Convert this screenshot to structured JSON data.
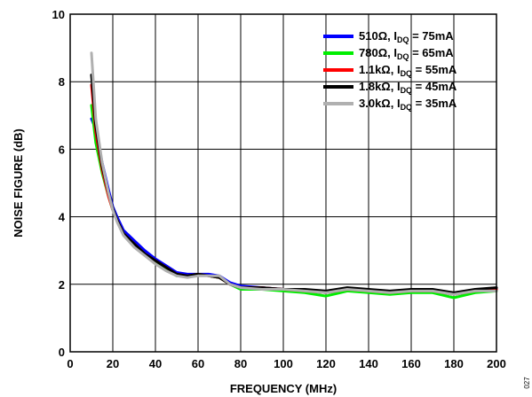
{
  "chart_data": {
    "type": "line",
    "title": "",
    "xlabel": "FREQUENCY (MHz)",
    "ylabel": "NOISE FIGURE (dB)",
    "xlim": [
      0,
      200
    ],
    "ylim": [
      0,
      10
    ],
    "xticks": [
      0,
      20,
      40,
      60,
      80,
      100,
      120,
      140,
      160,
      180,
      200
    ],
    "yticks": [
      0,
      2,
      4,
      6,
      8,
      10
    ],
    "grid": true,
    "legend_position": "top-right",
    "figure_number": "027",
    "series": [
      {
        "name": "510Ω, IDQ = 75mA",
        "legend_main": "510Ω, I",
        "legend_sub": "DQ",
        "legend_tail": " = 75mA",
        "color": "#0000ff",
        "x": [
          10,
          12,
          15,
          18,
          20,
          22,
          25,
          30,
          35,
          40,
          45,
          50,
          55,
          60,
          65,
          70,
          75,
          80,
          90,
          100,
          110,
          120,
          130,
          140,
          150,
          160,
          170,
          180,
          190,
          200
        ],
        "y": [
          6.9,
          6.6,
          5.6,
          4.8,
          4.3,
          4.0,
          3.6,
          3.3,
          3.0,
          2.75,
          2.55,
          2.35,
          2.3,
          2.3,
          2.3,
          2.25,
          2.05,
          1.95,
          1.9,
          1.85,
          1.8,
          1.75,
          1.85,
          1.8,
          1.75,
          1.8,
          1.8,
          1.7,
          1.8,
          1.85
        ]
      },
      {
        "name": "780Ω, IDQ = 65mA",
        "legend_main": "780Ω, I",
        "legend_sub": "DQ",
        "legend_tail": " = 65mA",
        "color": "#00ee00",
        "x": [
          10,
          12,
          15,
          18,
          20,
          22,
          25,
          30,
          35,
          40,
          45,
          50,
          55,
          60,
          65,
          70,
          75,
          80,
          90,
          100,
          110,
          120,
          130,
          140,
          150,
          160,
          170,
          180,
          190,
          200
        ],
        "y": [
          7.3,
          6.2,
          5.3,
          4.6,
          4.2,
          3.9,
          3.5,
          3.15,
          2.9,
          2.65,
          2.45,
          2.25,
          2.25,
          2.3,
          2.25,
          2.2,
          2.0,
          1.85,
          1.85,
          1.8,
          1.75,
          1.65,
          1.8,
          1.75,
          1.7,
          1.75,
          1.75,
          1.6,
          1.75,
          1.8
        ]
      },
      {
        "name": "1.1kΩ, IDQ = 55mA",
        "legend_main": "1.1kΩ, I",
        "legend_sub": "DQ",
        "legend_tail": " = 55mA",
        "color": "#ff0000",
        "x": [
          10,
          12,
          15,
          18,
          20,
          22,
          25,
          30,
          35,
          40,
          45,
          50,
          55,
          60,
          65,
          70,
          75,
          80,
          90,
          100,
          110,
          120,
          130,
          140,
          150,
          160,
          170,
          180,
          190,
          200
        ],
        "y": [
          7.9,
          6.5,
          5.4,
          4.6,
          4.2,
          3.9,
          3.5,
          3.2,
          2.9,
          2.7,
          2.5,
          2.3,
          2.25,
          2.3,
          2.25,
          2.2,
          2.0,
          1.9,
          1.9,
          1.85,
          1.8,
          1.75,
          1.85,
          1.8,
          1.75,
          1.8,
          1.8,
          1.7,
          1.8,
          1.85
        ]
      },
      {
        "name": "1.8kΩ, IDQ = 45mA",
        "legend_main": "1.8kΩ, I",
        "legend_sub": "DQ",
        "legend_tail": " = 45mA",
        "color": "#000000",
        "x": [
          10,
          12,
          15,
          18,
          20,
          22,
          25,
          30,
          35,
          40,
          45,
          50,
          55,
          60,
          65,
          70,
          75,
          80,
          90,
          100,
          110,
          120,
          130,
          140,
          150,
          160,
          170,
          180,
          190,
          200
        ],
        "y": [
          8.2,
          6.7,
          5.5,
          4.7,
          4.25,
          3.9,
          3.5,
          3.2,
          2.9,
          2.7,
          2.5,
          2.3,
          2.25,
          2.3,
          2.25,
          2.2,
          2.0,
          1.9,
          1.9,
          1.85,
          1.85,
          1.8,
          1.9,
          1.85,
          1.8,
          1.85,
          1.85,
          1.75,
          1.85,
          1.9
        ]
      },
      {
        "name": "3.0kΩ, IDQ = 35mA",
        "legend_main": "3.0kΩ, I",
        "legend_sub": "DQ",
        "legend_tail": " = 35mA",
        "color": "#b0b0b0",
        "x": [
          10,
          12,
          15,
          18,
          20,
          22,
          25,
          30,
          35,
          40,
          45,
          50,
          55,
          60,
          65,
          70,
          75,
          80,
          90,
          100,
          110,
          120,
          130,
          140,
          150,
          160,
          170,
          180,
          190,
          200
        ],
        "y": [
          8.85,
          6.9,
          5.6,
          4.7,
          4.2,
          3.85,
          3.45,
          3.1,
          2.85,
          2.6,
          2.4,
          2.25,
          2.2,
          2.25,
          2.25,
          2.25,
          2.0,
          1.9,
          1.85,
          1.85,
          1.8,
          1.75,
          1.85,
          1.8,
          1.75,
          1.8,
          1.8,
          1.7,
          1.8,
          1.8
        ]
      }
    ]
  }
}
